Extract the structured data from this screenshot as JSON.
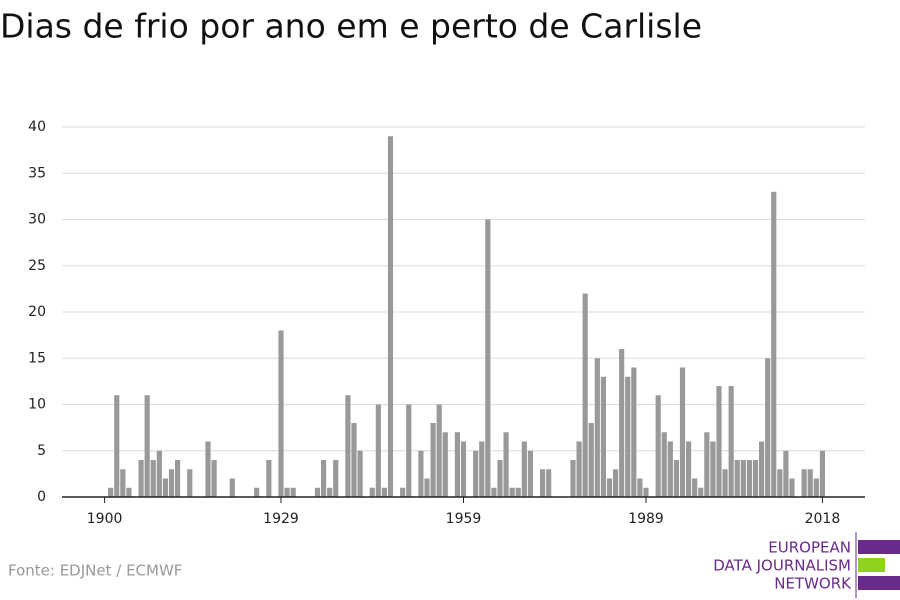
{
  "chart_data": {
    "type": "bar",
    "title": "Dias de frio por ano em e perto de Carlisle",
    "source": "Fonte: EDJNet / ECMWF",
    "logo": [
      "EUROPEAN",
      "DATA JOURNALISM",
      "NETWORK"
    ],
    "color": "#999999",
    "x": [
      1900,
      1901,
      1902,
      1903,
      1904,
      1905,
      1906,
      1907,
      1908,
      1909,
      1910,
      1911,
      1912,
      1913,
      1914,
      1915,
      1916,
      1917,
      1918,
      1919,
      1920,
      1921,
      1922,
      1923,
      1924,
      1925,
      1926,
      1927,
      1928,
      1929,
      1930,
      1931,
      1932,
      1933,
      1934,
      1935,
      1936,
      1937,
      1938,
      1939,
      1940,
      1941,
      1942,
      1943,
      1944,
      1945,
      1946,
      1947,
      1948,
      1949,
      1950,
      1951,
      1952,
      1953,
      1954,
      1955,
      1956,
      1957,
      1958,
      1959,
      1960,
      1961,
      1962,
      1963,
      1964,
      1965,
      1966,
      1967,
      1968,
      1969,
      1970,
      1971,
      1972,
      1973,
      1974,
      1975,
      1976,
      1977,
      1978,
      1979,
      1980,
      1981,
      1982,
      1983,
      1984,
      1985,
      1986,
      1987,
      1988,
      1989,
      1990,
      1991,
      1992,
      1993,
      1994,
      1995,
      1996,
      1997,
      1998,
      1999,
      2000,
      2001,
      2002,
      2003,
      2004,
      2005,
      2006,
      2007,
      2008,
      2009,
      2010,
      2011,
      2012,
      2013,
      2014,
      2015,
      2016,
      2017,
      2018
    ],
    "values": [
      0,
      1,
      11,
      3,
      1,
      0,
      4,
      11,
      4,
      5,
      2,
      3,
      4,
      0,
      3,
      0,
      0,
      6,
      4,
      0,
      0,
      2,
      0,
      0,
      0,
      1,
      0,
      4,
      0,
      18,
      1,
      1,
      0,
      0,
      0,
      1,
      4,
      1,
      4,
      0,
      11,
      8,
      5,
      0,
      1,
      10,
      1,
      39,
      0,
      1,
      10,
      0,
      5,
      2,
      8,
      10,
      7,
      0,
      7,
      6,
      0,
      5,
      6,
      30,
      1,
      4,
      7,
      1,
      1,
      6,
      5,
      0,
      3,
      3,
      0,
      0,
      0,
      4,
      6,
      22,
      8,
      15,
      13,
      2,
      3,
      16,
      13,
      14,
      2,
      1,
      0,
      11,
      7,
      6,
      4,
      14,
      6,
      2,
      1,
      7,
      6,
      12,
      3,
      12,
      4,
      4,
      4,
      4,
      6,
      15,
      33,
      3,
      5,
      2,
      0,
      3,
      3,
      2,
      5
    ],
    "xlim": [
      1893,
      2025
    ],
    "xticks": [
      1900,
      1929,
      1959,
      1989,
      2018
    ],
    "ylim": [
      0,
      40
    ],
    "yticks": [
      0,
      5,
      10,
      15,
      20,
      25,
      30,
      35,
      40
    ],
    "grid": true
  }
}
